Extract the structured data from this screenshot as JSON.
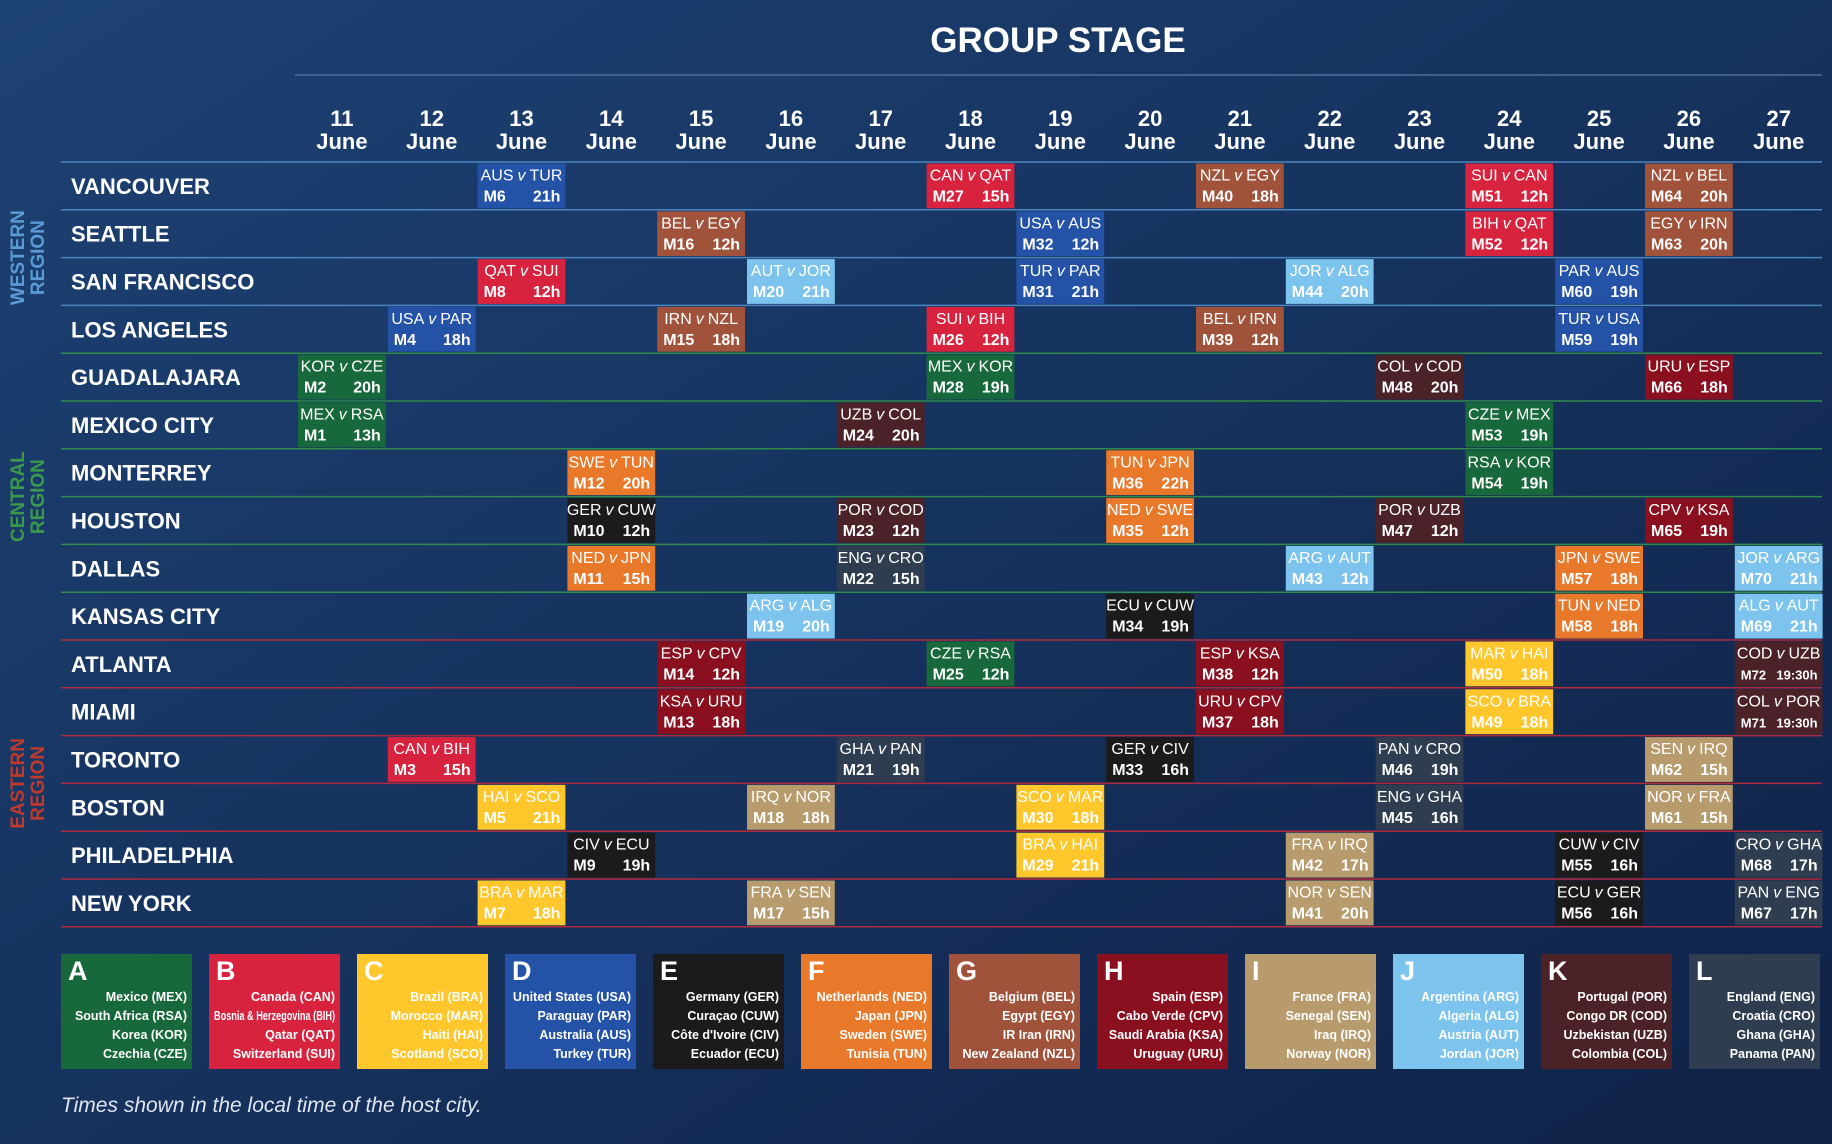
{
  "title": "GROUP STAGE",
  "dates": [
    {
      "day": "11",
      "month": "June"
    },
    {
      "day": "12",
      "month": "June"
    },
    {
      "day": "13",
      "month": "June"
    },
    {
      "day": "14",
      "month": "June"
    },
    {
      "day": "15",
      "month": "June"
    },
    {
      "day": "16",
      "month": "June"
    },
    {
      "day": "17",
      "month": "June"
    },
    {
      "day": "18",
      "month": "June"
    },
    {
      "day": "19",
      "month": "June"
    },
    {
      "day": "20",
      "month": "June"
    },
    {
      "day": "21",
      "month": "June"
    },
    {
      "day": "22",
      "month": "June"
    },
    {
      "day": "23",
      "month": "June"
    },
    {
      "day": "24",
      "month": "June"
    },
    {
      "day": "25",
      "month": "June"
    },
    {
      "day": "26",
      "month": "June"
    },
    {
      "day": "27",
      "month": "June"
    }
  ],
  "vs": "v",
  "regions": [
    {
      "name": [
        "WESTERN",
        "REGION"
      ],
      "color": "#5b9bd5",
      "line": "#4a86c0",
      "cities": [
        {
          "name": "VANCOUVER",
          "matches": [
            {
              "day": "13",
              "home": "AUS",
              "away": "TUR",
              "match": "M6",
              "time": "21h",
              "group": "D"
            },
            {
              "day": "18",
              "home": "CAN",
              "away": "QAT",
              "match": "M27",
              "time": "15h",
              "group": "B"
            },
            {
              "day": "21",
              "home": "NZL",
              "away": "EGY",
              "match": "M40",
              "time": "18h",
              "group": "G"
            },
            {
              "day": "24",
              "home": "SUI",
              "away": "CAN",
              "match": "M51",
              "time": "12h",
              "group": "B"
            },
            {
              "day": "26",
              "home": "NZL",
              "away": "BEL",
              "match": "M64",
              "time": "20h",
              "group": "G"
            }
          ]
        },
        {
          "name": "SEATTLE",
          "matches": [
            {
              "day": "15",
              "home": "BEL",
              "away": "EGY",
              "match": "M16",
              "time": "12h",
              "group": "G"
            },
            {
              "day": "19",
              "home": "USA",
              "away": "AUS",
              "match": "M32",
              "time": "12h",
              "group": "D"
            },
            {
              "day": "24",
              "home": "BIH",
              "away": "QAT",
              "match": "M52",
              "time": "12h",
              "group": "B"
            },
            {
              "day": "26",
              "home": "EGY",
              "away": "IRN",
              "match": "M63",
              "time": "20h",
              "group": "G"
            }
          ]
        },
        {
          "name": "SAN FRANCISCO",
          "matches": [
            {
              "day": "13",
              "home": "QAT",
              "away": "SUI",
              "match": "M8",
              "time": "12h",
              "group": "B"
            },
            {
              "day": "16",
              "home": "AUT",
              "away": "JOR",
              "match": "M20",
              "time": "21h",
              "group": "J"
            },
            {
              "day": "19",
              "home": "TUR",
              "away": "PAR",
              "match": "M31",
              "time": "21h",
              "group": "D"
            },
            {
              "day": "22",
              "home": "JOR",
              "away": "ALG",
              "match": "M44",
              "time": "20h",
              "group": "J"
            },
            {
              "day": "25",
              "home": "PAR",
              "away": "AUS",
              "match": "M60",
              "time": "19h",
              "group": "D"
            }
          ]
        },
        {
          "name": "LOS ANGELES",
          "matches": [
            {
              "day": "12",
              "home": "USA",
              "away": "PAR",
              "match": "M4",
              "time": "18h",
              "group": "D"
            },
            {
              "day": "15",
              "home": "IRN",
              "away": "NZL",
              "match": "M15",
              "time": "18h",
              "group": "G"
            },
            {
              "day": "18",
              "home": "SUI",
              "away": "BIH",
              "match": "M26",
              "time": "12h",
              "group": "B"
            },
            {
              "day": "21",
              "home": "BEL",
              "away": "IRN",
              "match": "M39",
              "time": "12h",
              "group": "G"
            },
            {
              "day": "25",
              "home": "TUR",
              "away": "USA",
              "match": "M59",
              "time": "19h",
              "group": "D"
            }
          ]
        }
      ]
    },
    {
      "name": [
        "CENTRAL",
        "REGION"
      ],
      "color": "#3a9a4a",
      "line": "#2e8b4a",
      "cities": [
        {
          "name": "GUADALAJARA",
          "matches": [
            {
              "day": "11",
              "home": "KOR",
              "away": "CZE",
              "match": "M2",
              "time": "20h",
              "group": "A"
            },
            {
              "day": "18",
              "home": "MEX",
              "away": "KOR",
              "match": "M28",
              "time": "19h",
              "group": "A"
            },
            {
              "day": "23",
              "home": "COL",
              "away": "COD",
              "match": "M48",
              "time": "20h",
              "group": "K"
            },
            {
              "day": "26",
              "home": "URU",
              "away": "ESP",
              "match": "M66",
              "time": "18h",
              "group": "H"
            }
          ]
        },
        {
          "name": "MEXICO CITY",
          "matches": [
            {
              "day": "11",
              "home": "MEX",
              "away": "RSA",
              "match": "M1",
              "time": "13h",
              "group": "A"
            },
            {
              "day": "17",
              "home": "UZB",
              "away": "COL",
              "match": "M24",
              "time": "20h",
              "group": "K"
            },
            {
              "day": "24",
              "home": "CZE",
              "away": "MEX",
              "match": "M53",
              "time": "19h",
              "group": "A"
            }
          ]
        },
        {
          "name": "MONTERREY",
          "matches": [
            {
              "day": "14",
              "home": "SWE",
              "away": "TUN",
              "match": "M12",
              "time": "20h",
              "group": "F"
            },
            {
              "day": "20",
              "home": "TUN",
              "away": "JPN",
              "match": "M36",
              "time": "22h",
              "group": "F"
            },
            {
              "day": "24",
              "home": "RSA",
              "away": "KOR",
              "match": "M54",
              "time": "19h",
              "group": "A"
            }
          ]
        },
        {
          "name": "HOUSTON",
          "matches": [
            {
              "day": "14",
              "home": "GER",
              "away": "CUW",
              "match": "M10",
              "time": "12h",
              "group": "E"
            },
            {
              "day": "17",
              "home": "POR",
              "away": "COD",
              "match": "M23",
              "time": "12h",
              "group": "K"
            },
            {
              "day": "20",
              "home": "NED",
              "away": "SWE",
              "match": "M35",
              "time": "12h",
              "group": "F"
            },
            {
              "day": "23",
              "home": "POR",
              "away": "UZB",
              "match": "M47",
              "time": "12h",
              "group": "K"
            },
            {
              "day": "26",
              "home": "CPV",
              "away": "KSA",
              "match": "M65",
              "time": "19h",
              "group": "H"
            }
          ]
        },
        {
          "name": "DALLAS",
          "matches": [
            {
              "day": "14",
              "home": "NED",
              "away": "JPN",
              "match": "M11",
              "time": "15h",
              "group": "F"
            },
            {
              "day": "17",
              "home": "ENG",
              "away": "CRO",
              "match": "M22",
              "time": "15h",
              "group": "L"
            },
            {
              "day": "22",
              "home": "ARG",
              "away": "AUT",
              "match": "M43",
              "time": "12h",
              "group": "J"
            },
            {
              "day": "25",
              "home": "JPN",
              "away": "SWE",
              "match": "M57",
              "time": "18h",
              "group": "F"
            },
            {
              "day": "27",
              "home": "JOR",
              "away": "ARG",
              "match": "M70",
              "time": "21h",
              "group": "J"
            }
          ]
        },
        {
          "name": "KANSAS CITY",
          "matches": [
            {
              "day": "16",
              "home": "ARG",
              "away": "ALG",
              "match": "M19",
              "time": "20h",
              "group": "J"
            },
            {
              "day": "20",
              "home": "ECU",
              "away": "CUW",
              "match": "M34",
              "time": "19h",
              "group": "E"
            },
            {
              "day": "25",
              "home": "TUN",
              "away": "NED",
              "match": "M58",
              "time": "18h",
              "group": "F"
            },
            {
              "day": "27",
              "home": "ALG",
              "away": "AUT",
              "match": "M69",
              "time": "21h",
              "group": "J"
            }
          ]
        }
      ]
    },
    {
      "name": [
        "EASTERN",
        "REGION"
      ],
      "color": "#c0392b",
      "line": "#b02a3c",
      "cities": [
        {
          "name": "ATLANTA",
          "matches": [
            {
              "day": "15",
              "home": "ESP",
              "away": "CPV",
              "match": "M14",
              "time": "12h",
              "group": "H"
            },
            {
              "day": "18",
              "home": "CZE",
              "away": "RSA",
              "match": "M25",
              "time": "12h",
              "group": "A"
            },
            {
              "day": "21",
              "home": "ESP",
              "away": "KSA",
              "match": "M38",
              "time": "12h",
              "group": "H"
            },
            {
              "day": "24",
              "home": "MAR",
              "away": "HAI",
              "match": "M50",
              "time": "18h",
              "group": "C"
            },
            {
              "day": "27",
              "home": "COD",
              "away": "UZB",
              "match": "M72",
              "time": "19:30h",
              "group": "K"
            }
          ]
        },
        {
          "name": "MIAMI",
          "matches": [
            {
              "day": "15",
              "home": "KSA",
              "away": "URU",
              "match": "M13",
              "time": "18h",
              "group": "H"
            },
            {
              "day": "21",
              "home": "URU",
              "away": "CPV",
              "match": "M37",
              "time": "18h",
              "group": "H"
            },
            {
              "day": "24",
              "home": "SCO",
              "away": "BRA",
              "match": "M49",
              "time": "18h",
              "group": "C"
            },
            {
              "day": "27",
              "home": "COL",
              "away": "POR",
              "match": "M71",
              "time": "19:30h",
              "group": "K"
            }
          ]
        },
        {
          "name": "TORONTO",
          "matches": [
            {
              "day": "12",
              "home": "CAN",
              "away": "BIH",
              "match": "M3",
              "time": "15h",
              "group": "B"
            },
            {
              "day": "17",
              "home": "GHA",
              "away": "PAN",
              "match": "M21",
              "time": "19h",
              "group": "L"
            },
            {
              "day": "20",
              "home": "GER",
              "away": "CIV",
              "match": "M33",
              "time": "16h",
              "group": "E"
            },
            {
              "day": "23",
              "home": "PAN",
              "away": "CRO",
              "match": "M46",
              "time": "19h",
              "group": "L"
            },
            {
              "day": "26",
              "home": "SEN",
              "away": "IRQ",
              "match": "M62",
              "time": "15h",
              "group": "I"
            }
          ]
        },
        {
          "name": "BOSTON",
          "matches": [
            {
              "day": "13",
              "home": "HAI",
              "away": "SCO",
              "match": "M5",
              "time": "21h",
              "group": "C"
            },
            {
              "day": "16",
              "home": "IRQ",
              "away": "NOR",
              "match": "M18",
              "time": "18h",
              "group": "I"
            },
            {
              "day": "19",
              "home": "SCO",
              "away": "MAR",
              "match": "M30",
              "time": "18h",
              "group": "C"
            },
            {
              "day": "23",
              "home": "ENG",
              "away": "GHA",
              "match": "M45",
              "time": "16h",
              "group": "L"
            },
            {
              "day": "26",
              "home": "NOR",
              "away": "FRA",
              "match": "M61",
              "time": "15h",
              "group": "I"
            }
          ]
        },
        {
          "name": "PHILADELPHIA",
          "matches": [
            {
              "day": "14",
              "home": "CIV",
              "away": "ECU",
              "match": "M9",
              "time": "19h",
              "group": "E"
            },
            {
              "day": "19",
              "home": "BRA",
              "away": "HAI",
              "match": "M29",
              "time": "21h",
              "group": "C"
            },
            {
              "day": "22",
              "home": "FRA",
              "away": "IRQ",
              "match": "M42",
              "time": "17h",
              "group": "I"
            },
            {
              "day": "25",
              "home": "CUW",
              "away": "CIV",
              "match": "M55",
              "time": "16h",
              "group": "E"
            },
            {
              "day": "27",
              "home": "CRO",
              "away": "GHA",
              "match": "M68",
              "time": "17h",
              "group": "L"
            }
          ]
        },
        {
          "name": "NEW YORK",
          "matches": [
            {
              "day": "13",
              "home": "BRA",
              "away": "MAR",
              "match": "M7",
              "time": "18h",
              "group": "C"
            },
            {
              "day": "16",
              "home": "FRA",
              "away": "SEN",
              "match": "M17",
              "time": "15h",
              "group": "I"
            },
            {
              "day": "22",
              "home": "NOR",
              "away": "SEN",
              "match": "M41",
              "time": "20h",
              "group": "I"
            },
            {
              "day": "25",
              "home": "ECU",
              "away": "GER",
              "match": "M56",
              "time": "16h",
              "group": "E"
            },
            {
              "day": "27",
              "home": "PAN",
              "away": "ENG",
              "match": "M67",
              "time": "17h",
              "group": "L"
            }
          ]
        }
      ]
    }
  ],
  "groups": [
    {
      "letter": "A",
      "color": "#17683a",
      "teams": [
        "Mexico (MEX)",
        "South Africa (RSA)",
        "Korea (KOR)",
        "Czechia (CZE)"
      ]
    },
    {
      "letter": "B",
      "color": "#d8233e",
      "teams": [
        "Canada (CAN)",
        "Bosnia & Herzegovina (BIH)",
        "Qatar (QAT)",
        "Switzerland (SUI)"
      ]
    },
    {
      "letter": "C",
      "color": "#ffc72c",
      "teams": [
        "Brazil (BRA)",
        "Morocco (MAR)",
        "Haiti (HAI)",
        "Scotland (SCO)"
      ]
    },
    {
      "letter": "D",
      "color": "#2452a6",
      "teams": [
        "United States (USA)",
        "Paraguay (PAR)",
        "Australia (AUS)",
        "Turkey (TUR)"
      ]
    },
    {
      "letter": "E",
      "color": "#1b1b1c",
      "teams": [
        "Germany (GER)",
        "Curaçao (CUW)",
        "Côte d'Ivoire (CIV)",
        "Ecuador (ECU)"
      ]
    },
    {
      "letter": "F",
      "color": "#e8782a",
      "teams": [
        "Netherlands (NED)",
        "Japan (JPN)",
        "Sweden (SWE)",
        "Tunisia (TUN)"
      ]
    },
    {
      "letter": "G",
      "color": "#a0523a",
      "teams": [
        "Belgium (BEL)",
        "Egypt (EGY)",
        "IR Iran (IRN)",
        "New Zealand (NZL)"
      ]
    },
    {
      "letter": "H",
      "color": "#8a0f1f",
      "teams": [
        "Spain (ESP)",
        "Cabo Verde (CPV)",
        "Saudi Arabia (KSA)",
        "Uruguay (URU)"
      ]
    },
    {
      "letter": "I",
      "color": "#b89b6c",
      "teams": [
        "France (FRA)",
        "Senegal (SEN)",
        "Iraq (IRQ)",
        "Norway (NOR)"
      ]
    },
    {
      "letter": "J",
      "color": "#7cc3ee",
      "teams": [
        "Argentina (ARG)",
        "Algeria (ALG)",
        "Austria (AUT)",
        "Jordan (JOR)"
      ]
    },
    {
      "letter": "K",
      "color": "#4b2228",
      "teams": [
        "Portugal (POR)",
        "Congo DR (COD)",
        "Uzbekistan (UZB)",
        "Colombia (COL)"
      ]
    },
    {
      "letter": "L",
      "color": "#2f3d50",
      "teams": [
        "England (ENG)",
        "Croatia (CRO)",
        "Ghana (GHA)",
        "Panama (PAN)"
      ]
    }
  ],
  "note": "Times shown in the local time of the host city."
}
